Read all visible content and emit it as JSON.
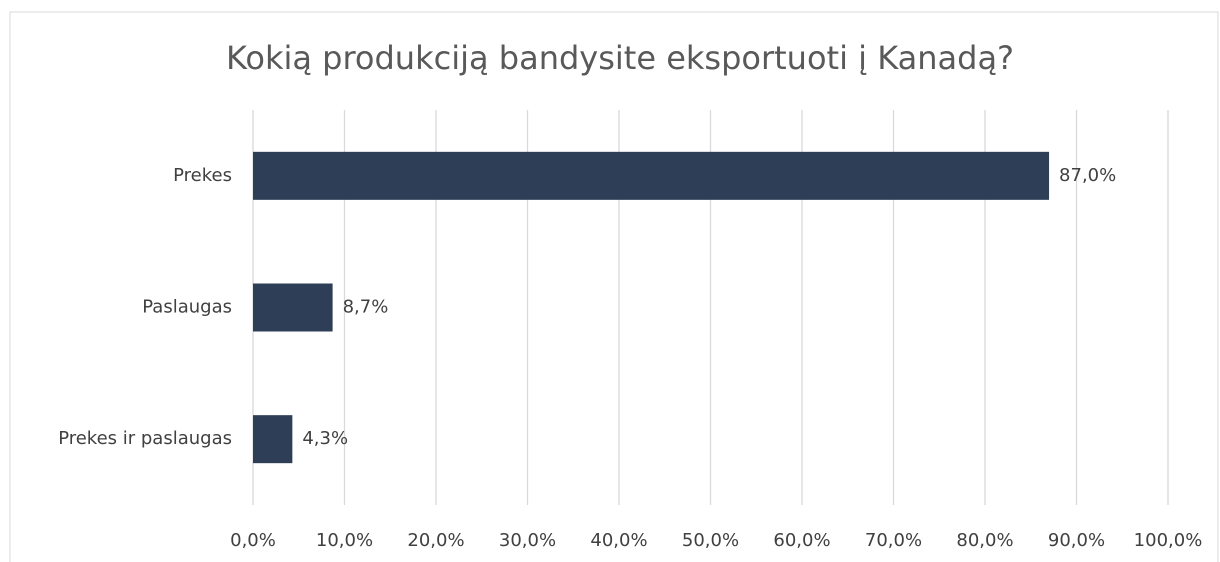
{
  "chart_data": {
    "type": "barh",
    "title": "Kokią produkciją bandysite eksportuoti į Kanadą?",
    "categories": [
      "Prekes",
      "Paslaugas",
      "Prekes ir paslaugas"
    ],
    "values": [
      87,
      8.7,
      4.3
    ],
    "value_labels": [
      "87,0%",
      "8,7%",
      "4,3%"
    ],
    "color": "#2e3e57",
    "xlim": [
      0,
      100
    ],
    "xticks": [
      {
        "value": 0,
        "label": "0,0%"
      },
      {
        "value": 10,
        "label": "10,0%"
      },
      {
        "value": 20,
        "label": "20,0%"
      },
      {
        "value": 30,
        "label": "30,0%"
      },
      {
        "value": 40,
        "label": "40,0%"
      },
      {
        "value": 50,
        "label": "50,0%"
      },
      {
        "value": 60,
        "label": "60,0%"
      },
      {
        "value": 70,
        "label": "70,0%"
      },
      {
        "value": 80,
        "label": "80,0%"
      },
      {
        "value": 90,
        "label": "90,0%"
      },
      {
        "value": 100,
        "label": "100,0%"
      }
    ],
    "grid": true
  }
}
